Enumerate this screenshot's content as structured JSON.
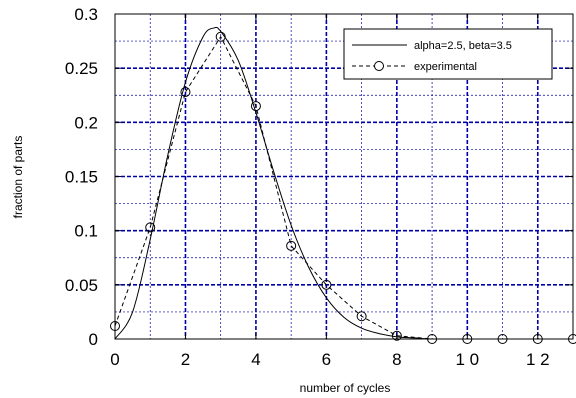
{
  "chart_data": {
    "type": "line",
    "title": "",
    "xlabel": "number of cycles",
    "ylabel": "fraction of parts",
    "xlim": [
      0,
      13
    ],
    "ylim": [
      0,
      0.3
    ],
    "x_ticks": [
      0,
      2,
      4,
      6,
      8,
      10,
      12
    ],
    "x_tick_labels": [
      "0",
      "2",
      "4",
      "6",
      "8",
      "1 0",
      "1 2"
    ],
    "y_ticks": [
      0,
      0.05,
      0.1,
      0.15,
      0.2,
      0.25,
      0.3
    ],
    "y_tick_labels": [
      "0",
      "0.05",
      "0.1",
      "0.15",
      "0.2",
      "0.25",
      "0.3"
    ],
    "grid": true,
    "grid_color": "#0000aa",
    "legend_position": "top-right",
    "series": [
      {
        "name": "alpha=2.5, beta=3.5",
        "style": "solid",
        "x": [
          0,
          0.5,
          1,
          1.5,
          2,
          2.5,
          2.8,
          3,
          3.5,
          4,
          4.5,
          5,
          5.5,
          6,
          6.5,
          7,
          7.5,
          8,
          8.5,
          9,
          10,
          11,
          12,
          13
        ],
        "y": [
          0,
          0.025,
          0.092,
          0.17,
          0.237,
          0.279,
          0.287,
          0.284,
          0.257,
          0.209,
          0.155,
          0.105,
          0.066,
          0.038,
          0.02,
          0.01,
          0.005,
          0.002,
          0.001,
          0,
          0,
          0,
          0,
          0
        ]
      },
      {
        "name": "experimental",
        "style": "dashed",
        "marker": "circle",
        "x": [
          0,
          1,
          2,
          3,
          4,
          5,
          6,
          7,
          8,
          9,
          10,
          11,
          12,
          13
        ],
        "y": [
          0.012,
          0.103,
          0.228,
          0.279,
          0.215,
          0.086,
          0.05,
          0.021,
          0.003,
          0,
          0,
          0,
          0,
          0
        ]
      }
    ]
  }
}
